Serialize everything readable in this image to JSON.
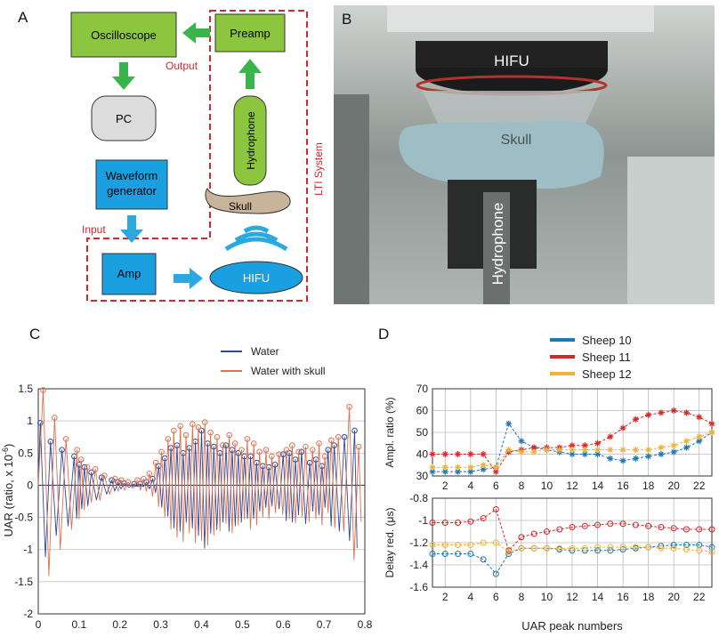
{
  "panels": {
    "a": "A",
    "b": "B",
    "c": "C",
    "d": "D"
  },
  "diagram": {
    "oscilloscope": "Oscilloscope",
    "preamp": "Preamp",
    "pc": "PC",
    "output": "Output",
    "hydrophone": "Hydrophone",
    "waveform": "Waveform",
    "generator": "generator",
    "skull": "Skull",
    "lti": "LTI System",
    "input": "Input",
    "amp": "Amp",
    "hifu": "HIFU",
    "colors": {
      "green": "#8cc63f",
      "blue": "#1aa0e0",
      "gray": "#dcdcdc",
      "skull": "#c8b49a",
      "red": "#d9262c",
      "arrowGreen": "#39b54a",
      "arrowBlue": "#29a9e0"
    }
  },
  "photo": {
    "hifu": "HIFU",
    "skull": "Skull",
    "hydrophone": "Hydrophone"
  },
  "chart_data": [
    {
      "type": "line",
      "panel": "C",
      "xlabel": "",
      "ylabel": "UAR (ratio, x 10",
      "ylabel_exp": "-6",
      "ylabel_close": ")",
      "xlim": [
        0,
        0.8
      ],
      "ylim": [
        -2,
        1.5
      ],
      "xticks": [
        "0",
        "0.1",
        "0.2",
        "0.3",
        "0.4",
        "0.5",
        "0.6",
        "0.7",
        "0.8"
      ],
      "yticks": [
        "1.5",
        "1",
        "0.5",
        "0",
        "-0.5",
        "-1",
        "-1.5",
        "-2"
      ],
      "legend": "top-right",
      "series": [
        {
          "name": "Water",
          "color": "#2a4aa0",
          "peaks_x": [
            0.005,
            0.03,
            0.058,
            0.088,
            0.1,
            0.113,
            0.13,
            0.155,
            0.18,
            0.195,
            0.21,
            0.235,
            0.25,
            0.265,
            0.28,
            0.295,
            0.31,
            0.325,
            0.34,
            0.355,
            0.37,
            0.385,
            0.4,
            0.415,
            0.43,
            0.445,
            0.46,
            0.475,
            0.49,
            0.505,
            0.52,
            0.535,
            0.55,
            0.565,
            0.58,
            0.6,
            0.615,
            0.63,
            0.645,
            0.665,
            0.68,
            0.695,
            0.71,
            0.725,
            0.75,
            0.775
          ],
          "peaks_y": [
            0.97,
            0.68,
            0.55,
            0.45,
            0.32,
            0.28,
            0.2,
            0.12,
            0.08,
            0.05,
            0.03,
            0.02,
            0.02,
            0.05,
            0.1,
            0.3,
            0.42,
            0.58,
            0.62,
            0.5,
            0.58,
            0.68,
            0.85,
            0.65,
            0.6,
            0.5,
            0.62,
            0.55,
            0.5,
            0.45,
            0.45,
            0.35,
            0.3,
            0.28,
            0.32,
            0.48,
            0.5,
            0.4,
            0.52,
            0.35,
            0.4,
            0.3,
            0.55,
            0.62,
            0.75,
            0.85
          ]
        },
        {
          "name": "Water with skull",
          "color": "#e07050",
          "peaks_x": [
            0.012,
            0.04,
            0.068,
            0.095,
            0.105,
            0.12,
            0.14,
            0.162,
            0.188,
            0.203,
            0.22,
            0.243,
            0.258,
            0.272,
            0.288,
            0.302,
            0.318,
            0.332,
            0.348,
            0.362,
            0.378,
            0.392,
            0.408,
            0.422,
            0.438,
            0.452,
            0.468,
            0.482,
            0.498,
            0.512,
            0.528,
            0.542,
            0.558,
            0.572,
            0.59,
            0.608,
            0.622,
            0.638,
            0.655,
            0.672,
            0.688,
            0.702,
            0.718,
            0.735,
            0.762,
            0.785
          ],
          "peaks_y": [
            1.48,
            1.05,
            0.72,
            0.55,
            0.4,
            0.28,
            0.25,
            0.15,
            0.1,
            0.08,
            0.05,
            0.08,
            0.1,
            0.18,
            0.35,
            0.52,
            0.72,
            0.85,
            0.92,
            0.78,
            0.95,
            0.9,
            0.98,
            0.82,
            0.75,
            0.62,
            0.78,
            0.65,
            0.55,
            0.72,
            0.65,
            0.52,
            0.55,
            0.45,
            0.48,
            0.55,
            0.62,
            0.52,
            0.6,
            0.55,
            0.65,
            0.45,
            0.7,
            0.75,
            1.22,
            0.6
          ]
        }
      ]
    },
    {
      "type": "line",
      "panel": "D-top",
      "ylabel": "Ampl. ratio (%)",
      "xlim": [
        1,
        23
      ],
      "ylim": [
        30,
        70
      ],
      "yticks": [
        "70",
        "60",
        "50",
        "40",
        "30"
      ],
      "xticks": [
        "2",
        "4",
        "6",
        "8",
        "10",
        "12",
        "14",
        "16",
        "18",
        "20",
        "22"
      ],
      "legend": "top",
      "series": [
        {
          "name": "Sheep 10",
          "color": "#1f77b4",
          "x": [
            1,
            2,
            3,
            4,
            5,
            6,
            7,
            8,
            9,
            10,
            11,
            12,
            13,
            14,
            15,
            16,
            17,
            18,
            19,
            20,
            21,
            22,
            23
          ],
          "y": [
            32,
            32,
            32,
            32,
            33,
            34,
            54,
            46,
            43,
            42,
            41,
            40,
            40,
            40,
            38,
            37,
            38,
            39,
            40,
            41,
            43,
            46,
            50
          ]
        },
        {
          "name": "Sheep 11",
          "color": "#d62728",
          "x": [
            1,
            2,
            3,
            4,
            5,
            6,
            7,
            8,
            9,
            10,
            11,
            12,
            13,
            14,
            15,
            16,
            17,
            18,
            19,
            20,
            21,
            22,
            23
          ],
          "y": [
            40,
            40,
            40,
            40,
            40,
            32,
            41,
            42,
            43,
            43,
            43,
            44,
            44,
            45,
            48,
            52,
            56,
            58,
            59,
            60,
            59,
            57,
            54
          ]
        },
        {
          "name": "Sheep 12",
          "color": "#f2b134",
          "x": [
            1,
            2,
            3,
            4,
            5,
            6,
            7,
            8,
            9,
            10,
            11,
            12,
            13,
            14,
            15,
            16,
            17,
            18,
            19,
            20,
            21,
            22,
            23
          ],
          "y": [
            34,
            34,
            34,
            34,
            35,
            34,
            42,
            41,
            41,
            42,
            42,
            42,
            42,
            42,
            42,
            42,
            42,
            42,
            43,
            44,
            46,
            48,
            50
          ]
        }
      ]
    },
    {
      "type": "line",
      "panel": "D-bottom",
      "ylabel": "Delay red. (μs)",
      "xlabel": "UAR peak numbers",
      "xlim": [
        1,
        23
      ],
      "ylim": [
        -1.6,
        -0.8
      ],
      "yticks": [
        "-0.8",
        "-1",
        "-1.2",
        "-1.4",
        "-1.6"
      ],
      "xticks": [
        "2",
        "4",
        "6",
        "8",
        "10",
        "12",
        "14",
        "16",
        "18",
        "20",
        "22"
      ],
      "series": [
        {
          "name": "Sheep 10",
          "color": "#1f77b4",
          "x": [
            1,
            2,
            3,
            4,
            5,
            6,
            7,
            8,
            9,
            10,
            11,
            12,
            13,
            14,
            15,
            16,
            17,
            18,
            19,
            20,
            21,
            22,
            23
          ],
          "y": [
            -1.3,
            -1.3,
            -1.3,
            -1.3,
            -1.35,
            -1.48,
            -1.3,
            -1.25,
            -1.25,
            -1.25,
            -1.26,
            -1.27,
            -1.27,
            -1.27,
            -1.27,
            -1.26,
            -1.25,
            -1.24,
            -1.23,
            -1.22,
            -1.22,
            -1.22,
            -1.24
          ]
        },
        {
          "name": "Sheep 11",
          "color": "#d62728",
          "x": [
            1,
            2,
            3,
            4,
            5,
            6,
            7,
            8,
            9,
            10,
            11,
            12,
            13,
            14,
            15,
            16,
            17,
            18,
            19,
            20,
            21,
            22,
            23
          ],
          "y": [
            -1.02,
            -1.02,
            -1.02,
            -1.01,
            -0.98,
            -0.9,
            -1.27,
            -1.15,
            -1.12,
            -1.1,
            -1.08,
            -1.06,
            -1.05,
            -1.04,
            -1.03,
            -1.03,
            -1.04,
            -1.05,
            -1.06,
            -1.07,
            -1.08,
            -1.08,
            -1.08
          ]
        },
        {
          "name": "Sheep 12",
          "color": "#f2b134",
          "x": [
            1,
            2,
            3,
            4,
            5,
            6,
            7,
            8,
            9,
            10,
            11,
            12,
            13,
            14,
            15,
            16,
            17,
            18,
            19,
            20,
            21,
            22,
            23
          ],
          "y": [
            -1.22,
            -1.22,
            -1.22,
            -1.22,
            -1.2,
            -1.2,
            -1.28,
            -1.25,
            -1.25,
            -1.25,
            -1.25,
            -1.25,
            -1.25,
            -1.24,
            -1.24,
            -1.24,
            -1.24,
            -1.24,
            -1.25,
            -1.25,
            -1.26,
            -1.27,
            -1.28
          ]
        }
      ]
    }
  ]
}
